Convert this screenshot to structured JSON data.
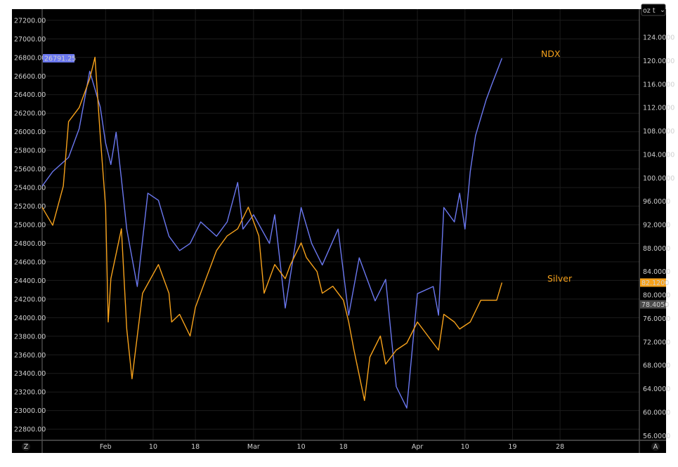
{
  "chart_data": {
    "type": "line",
    "colors": {
      "background": "#000000",
      "ndx": "#6b78f0",
      "silver": "#f7a21b",
      "grid": "#1c1c1c",
      "axis_text": "#cfcfcf",
      "marker_gray": "#4a4a4a"
    },
    "x_ticks": [
      {
        "date": "02-01",
        "label": "Feb"
      },
      {
        "date": "02-10",
        "label": "10"
      },
      {
        "date": "02-18",
        "label": "18"
      },
      {
        "date": "03-01",
        "label": "Mar"
      },
      {
        "date": "03-10",
        "label": "10"
      },
      {
        "date": "03-18",
        "label": "18"
      },
      {
        "date": "04-01",
        "label": "Apr"
      },
      {
        "date": "04-10",
        "label": "10"
      },
      {
        "date": "04-19",
        "label": "19"
      },
      {
        "date": "04-28",
        "label": "28"
      }
    ],
    "xlim": [
      "01-20",
      "05-13"
    ],
    "left_axis": {
      "ylim": [
        22680,
        27320
      ],
      "ticks": [
        "27200.00",
        "27000.00",
        "26800.00",
        "26600.00",
        "26400.00",
        "26200.00",
        "26000.00",
        "25800.00",
        "25600.00",
        "25400.00",
        "25200.00",
        "25000.00",
        "24800.00",
        "24600.00",
        "24400.00",
        "24200.00",
        "24000.00",
        "23800.00",
        "23600.00",
        "23400.00",
        "23200.00",
        "23000.00",
        "22800.00"
      ],
      "last_value_label": "26791.25"
    },
    "right_axis": {
      "ylim": [
        55.2,
        128.8
      ],
      "unit_selector": "oz t",
      "ticks": [
        "124.0000",
        "120.0000",
        "116.0000",
        "112.0000",
        "108.0000",
        "104.0000",
        "100.0000",
        "96.0000",
        "92.0000",
        "88.0000",
        "84.0000",
        "80.0000",
        "76.0000",
        "72.0000",
        "68.0000",
        "64.0000",
        "60.0000",
        "56.0000"
      ],
      "last_value_label": "82.1200",
      "secondary_value_label": "78.4050",
      "secondary_value": 78.405
    },
    "series": [
      {
        "name": "NDX",
        "axis": "left",
        "points": [
          [
            "01-20",
            25416
          ],
          [
            "01-22",
            25571
          ],
          [
            "01-25",
            25725
          ],
          [
            "01-27",
            26034
          ],
          [
            "01-29",
            26652
          ],
          [
            "01-31",
            26266
          ],
          [
            "02-01",
            25880
          ],
          [
            "02-02",
            25648
          ],
          [
            "02-03",
            25995
          ],
          [
            "02-04",
            25493
          ],
          [
            "02-05",
            24953
          ],
          [
            "02-07",
            24335
          ],
          [
            "02-09",
            25339
          ],
          [
            "02-11",
            25262
          ],
          [
            "02-13",
            24876
          ],
          [
            "02-15",
            24722
          ],
          [
            "02-17",
            24798
          ],
          [
            "02-19",
            25030
          ],
          [
            "02-22",
            24876
          ],
          [
            "02-24",
            25030
          ],
          [
            "02-26",
            25455
          ],
          [
            "02-27",
            24953
          ],
          [
            "03-01",
            25107
          ],
          [
            "03-04",
            24798
          ],
          [
            "03-05",
            25107
          ],
          [
            "03-07",
            24103
          ],
          [
            "03-10",
            25185
          ],
          [
            "03-12",
            24798
          ],
          [
            "03-14",
            24567
          ],
          [
            "03-17",
            24953
          ],
          [
            "03-19",
            24026
          ],
          [
            "03-21",
            24644
          ],
          [
            "03-24",
            24181
          ],
          [
            "03-26",
            24412
          ],
          [
            "03-28",
            23258
          ],
          [
            "03-30",
            23027
          ],
          [
            "04-01",
            24258
          ],
          [
            "04-04",
            24335
          ],
          [
            "04-05",
            24026
          ],
          [
            "04-06",
            25185
          ],
          [
            "04-08",
            25030
          ],
          [
            "04-09",
            25339
          ],
          [
            "04-10",
            24953
          ],
          [
            "04-11",
            25571
          ],
          [
            "04-12",
            25958
          ],
          [
            "04-14",
            26343
          ],
          [
            "04-15",
            26497
          ],
          [
            "04-17",
            26791.25
          ]
        ]
      },
      {
        "name": "Silver",
        "axis": "right",
        "points": [
          [
            "01-20",
            94.97
          ],
          [
            "01-22",
            91.9
          ],
          [
            "01-24",
            98.6
          ],
          [
            "01-25",
            109.6
          ],
          [
            "01-27",
            112
          ],
          [
            "01-29",
            116.9
          ],
          [
            "01-30",
            120.6
          ],
          [
            "01-31",
            107.2
          ],
          [
            "02-01",
            95
          ],
          [
            "02-01 12",
            75.4
          ],
          [
            "02-02",
            82.8
          ],
          [
            "02-04",
            91.3
          ],
          [
            "02-05",
            74.2
          ],
          [
            "02-06",
            65.7
          ],
          [
            "02-08",
            80.3
          ],
          [
            "02-11",
            85.2
          ],
          [
            "02-13",
            80.3
          ],
          [
            "02-13 12",
            75.4
          ],
          [
            "02-15",
            76.7
          ],
          [
            "02-17",
            73
          ],
          [
            "02-18",
            77.9
          ],
          [
            "02-20",
            82.8
          ],
          [
            "02-22",
            87.6
          ],
          [
            "02-24",
            90.1
          ],
          [
            "02-26",
            91.3
          ],
          [
            "02-28",
            95
          ],
          [
            "03-02",
            90.1
          ],
          [
            "03-03",
            80.3
          ],
          [
            "03-05",
            85.2
          ],
          [
            "03-07",
            82.8
          ],
          [
            "03-08",
            85.2
          ],
          [
            "03-10",
            88.9
          ],
          [
            "03-11",
            86.4
          ],
          [
            "03-13",
            84
          ],
          [
            "03-14",
            80.3
          ],
          [
            "03-16",
            81.5
          ],
          [
            "03-18",
            79.1
          ],
          [
            "03-19",
            75.4
          ],
          [
            "03-20",
            70.6
          ],
          [
            "03-22",
            62
          ],
          [
            "03-23",
            69.4
          ],
          [
            "03-25",
            73
          ],
          [
            "03-26",
            68.2
          ],
          [
            "03-28",
            70.6
          ],
          [
            "03-30",
            71.8
          ],
          [
            "04-01",
            75.4
          ],
          [
            "04-03",
            73
          ],
          [
            "04-04",
            71.8
          ],
          [
            "04-05",
            70.6
          ],
          [
            "04-06",
            76.7
          ],
          [
            "04-08",
            75.4
          ],
          [
            "04-09",
            74.2
          ],
          [
            "04-11",
            75.4
          ],
          [
            "04-13",
            79.1
          ],
          [
            "04-15",
            79.1
          ],
          [
            "04-16",
            79.1
          ],
          [
            "04-17",
            82.12
          ]
        ]
      }
    ],
    "legend_labels": {
      "ndx": "NDX",
      "silver": "Silver"
    },
    "grid": true,
    "buttons": {
      "left_corner": "Z",
      "right_corner": "A"
    }
  }
}
